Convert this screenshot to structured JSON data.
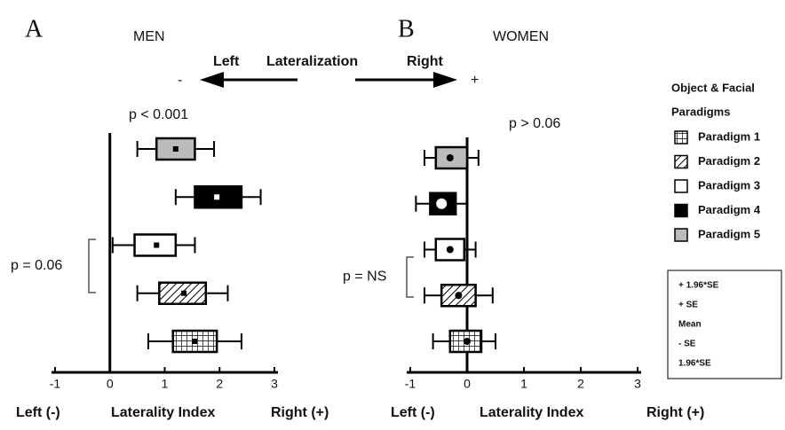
{
  "figure": {
    "arrow": {
      "left": "Left",
      "middle": "Lateralization",
      "right": "Right",
      "minus": "-",
      "plus": "+"
    },
    "legend": {
      "title": [
        "Object & Facial",
        "Paradigms"
      ],
      "items": [
        {
          "name": "Paradigm 1",
          "pattern": "grid"
        },
        {
          "name": "Paradigm 2",
          "pattern": "hatch"
        },
        {
          "name": "Paradigm 3",
          "pattern": "white"
        },
        {
          "name": "Paradigm 4",
          "pattern": "black"
        },
        {
          "name": "Paradigm 5",
          "pattern": "gray"
        }
      ]
    },
    "key": [
      "+ 1.96*SE",
      "+ SE",
      "Mean",
      "- SE",
      "1.96*SE"
    ]
  },
  "chart_data": [
    {
      "type": "box",
      "panel": "A",
      "title": "MEN",
      "p_value": "p < 0.001",
      "bracket_label": "p = 0.06",
      "mean_marker": "square",
      "x_labels": [
        "Left (-)",
        "Laterality Index",
        "Right (+)"
      ],
      "xlim": [
        -1,
        3
      ],
      "xticks": [
        -1,
        0,
        1,
        2,
        3
      ],
      "series": [
        {
          "values": [
            0.7,
            1.15,
            1.55,
            1.95,
            2.4
          ]
        },
        {
          "values": [
            0.5,
            0.9,
            1.35,
            1.75,
            2.15
          ]
        },
        {
          "values": [
            0.05,
            0.45,
            0.85,
            1.2,
            1.55
          ]
        },
        {
          "values": [
            1.2,
            1.55,
            1.95,
            2.4,
            2.75
          ]
        },
        {
          "values": [
            0.5,
            0.85,
            1.2,
            1.55,
            1.9
          ]
        }
      ]
    },
    {
      "type": "box",
      "panel": "B",
      "title": "WOMEN",
      "p_value": "p > 0.06",
      "bracket_label": "p = NS",
      "mean_marker": "circle",
      "x_labels": [
        "Left (-)",
        "Laterality Index",
        "Right (+)"
      ],
      "xlim": [
        -1,
        3
      ],
      "xticks": [
        -1,
        0,
        1,
        2,
        3
      ],
      "series": [
        {
          "values": [
            -0.6,
            -0.3,
            0,
            0.25,
            0.5
          ]
        },
        {
          "values": [
            -0.75,
            -0.45,
            -0.15,
            0.15,
            0.45
          ]
        },
        {
          "values": [
            -0.75,
            -0.55,
            -0.3,
            -0.05,
            0.15
          ]
        },
        {
          "values": [
            -0.9,
            -0.65,
            -0.45,
            -0.2,
            0
          ]
        },
        {
          "values": [
            -0.75,
            -0.55,
            -0.3,
            0,
            0.2
          ]
        }
      ]
    }
  ]
}
